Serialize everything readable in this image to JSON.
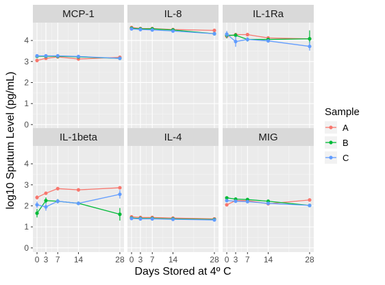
{
  "chart_data": {
    "type": "line",
    "xlabel": "Days Stored at 4º C",
    "ylabel": "log10 Sputum Level (pg/mL)",
    "x": [
      0,
      3,
      7,
      14,
      28
    ],
    "x_ticks": [
      0,
      3,
      7,
      14,
      28
    ],
    "x_tick_labels": [
      "0",
      "3",
      "7",
      "14",
      "28"
    ],
    "xlim": [
      -1.4,
      29.4
    ],
    "ylim": [
      -0.2,
      4.85
    ],
    "y_ticks": [
      0,
      1,
      2,
      3,
      4
    ],
    "y_tick_labels": [
      "0",
      "1",
      "2",
      "3",
      "4"
    ],
    "grid": true,
    "facet_layout": {
      "rows": 2,
      "cols": 3
    },
    "legend": {
      "title": "Sample",
      "placement": "right",
      "entries": [
        {
          "name": "A",
          "color": "#F8766D"
        },
        {
          "name": "B",
          "color": "#00BA38"
        },
        {
          "name": "C",
          "color": "#619CFF"
        }
      ]
    },
    "panels": [
      {
        "title": "MCP-1",
        "series": [
          {
            "name": "A",
            "values": [
              3.05,
              3.15,
              3.22,
              3.12,
              3.2
            ],
            "err": [
              0.05,
              0.05,
              0.05,
              0.05,
              0.05
            ]
          },
          {
            "name": "B",
            "values": [
              3.25,
              3.25,
              3.25,
              3.22,
              3.15
            ],
            "err": [
              0.05,
              0.05,
              0.05,
              0.05,
              0.05
            ]
          },
          {
            "name": "C",
            "values": [
              3.27,
              3.27,
              3.27,
              3.24,
              3.15
            ],
            "err": [
              0.05,
              0.05,
              0.05,
              0.05,
              0.05
            ]
          }
        ]
      },
      {
        "title": "IL-8",
        "series": [
          {
            "name": "A",
            "values": [
              4.62,
              4.57,
              4.57,
              4.52,
              4.48
            ],
            "err": [
              0.05,
              0.05,
              0.05,
              0.05,
              0.05
            ]
          },
          {
            "name": "B",
            "values": [
              4.58,
              4.55,
              4.55,
              4.5,
              4.32
            ],
            "err": [
              0.05,
              0.05,
              0.05,
              0.05,
              0.05
            ]
          },
          {
            "name": "C",
            "values": [
              4.55,
              4.52,
              4.5,
              4.45,
              4.32
            ],
            "err": [
              0.05,
              0.05,
              0.05,
              0.05,
              0.05
            ]
          }
        ]
      },
      {
        "title": "IL-1Ra",
        "series": [
          {
            "name": "A",
            "values": [
              4.2,
              4.28,
              4.28,
              4.12,
              4.08
            ],
            "err": [
              0.08,
              0.08,
              0.08,
              0.05,
              0.05
            ]
          },
          {
            "name": "B",
            "values": [
              4.25,
              4.25,
              4.05,
              4.05,
              4.08
            ],
            "err": [
              0.15,
              0.1,
              0.1,
              0.05,
              0.4
            ]
          },
          {
            "name": "C",
            "values": [
              4.3,
              3.95,
              4.05,
              3.98,
              3.72
            ],
            "err": [
              0.15,
              0.25,
              0.1,
              0.08,
              0.2
            ]
          }
        ]
      },
      {
        "title": "IL-1beta",
        "series": [
          {
            "name": "A",
            "values": [
              2.4,
              2.6,
              2.82,
              2.76,
              2.86
            ],
            "err": [
              0.1,
              0.08,
              0.08,
              0.08,
              0.08
            ]
          },
          {
            "name": "B",
            "values": [
              1.65,
              2.25,
              2.22,
              2.12,
              1.6
            ],
            "err": [
              0.2,
              0.15,
              0.1,
              0.08,
              0.3
            ]
          },
          {
            "name": "C",
            "values": [
              2.05,
              1.95,
              2.22,
              2.12,
              2.55
            ],
            "err": [
              0.15,
              0.18,
              0.1,
              0.08,
              0.2
            ]
          }
        ]
      },
      {
        "title": "IL-4",
        "series": [
          {
            "name": "A",
            "values": [
              1.48,
              1.45,
              1.45,
              1.42,
              1.38
            ],
            "err": [
              0.05,
              0.05,
              0.05,
              0.05,
              0.05
            ]
          },
          {
            "name": "B",
            "values": [
              1.42,
              1.4,
              1.4,
              1.38,
              1.35
            ],
            "err": [
              0.05,
              0.05,
              0.05,
              0.05,
              0.05
            ]
          },
          {
            "name": "C",
            "values": [
              1.4,
              1.38,
              1.38,
              1.36,
              1.33
            ],
            "err": [
              0.05,
              0.05,
              0.05,
              0.05,
              0.05
            ]
          }
        ]
      },
      {
        "title": "MIG",
        "series": [
          {
            "name": "A",
            "values": [
              2.05,
              2.25,
              2.25,
              2.1,
              2.28
            ],
            "err": [
              0.05,
              0.05,
              0.05,
              0.05,
              0.05
            ]
          },
          {
            "name": "B",
            "values": [
              2.38,
              2.32,
              2.3,
              2.22,
              2.02
            ],
            "err": [
              0.05,
              0.05,
              0.05,
              0.05,
              0.05
            ]
          },
          {
            "name": "C",
            "values": [
              2.25,
              2.22,
              2.2,
              2.12,
              2.02
            ],
            "err": [
              0.05,
              0.05,
              0.05,
              0.05,
              0.05
            ]
          }
        ]
      }
    ]
  }
}
